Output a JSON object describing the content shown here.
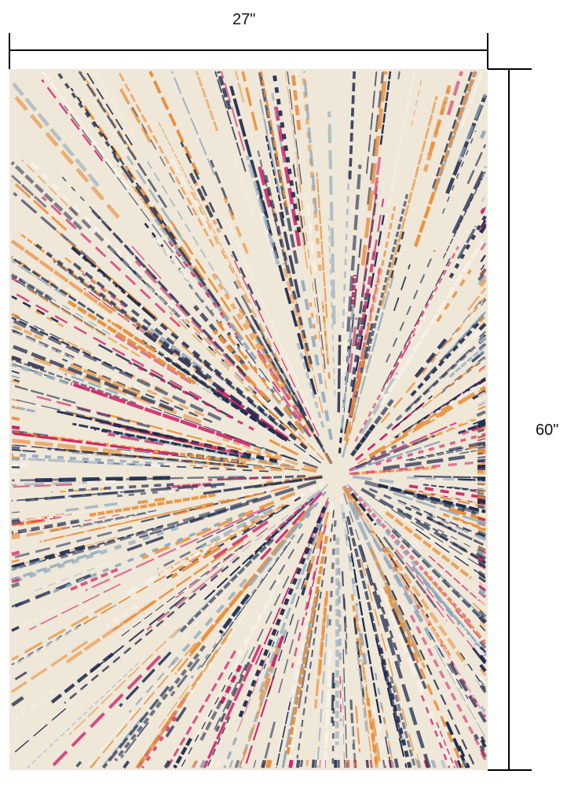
{
  "dimensions": {
    "width_label": "27\"",
    "height_label": "60\""
  },
  "rug": {
    "pattern": "starburst",
    "colors": {
      "background": "#efe7d8",
      "navy": "#1f2b4d",
      "orange": "#e98f3a",
      "magenta": "#cf2468",
      "light_blue": "#8fa7bb",
      "cream": "#f7f1e6"
    }
  }
}
